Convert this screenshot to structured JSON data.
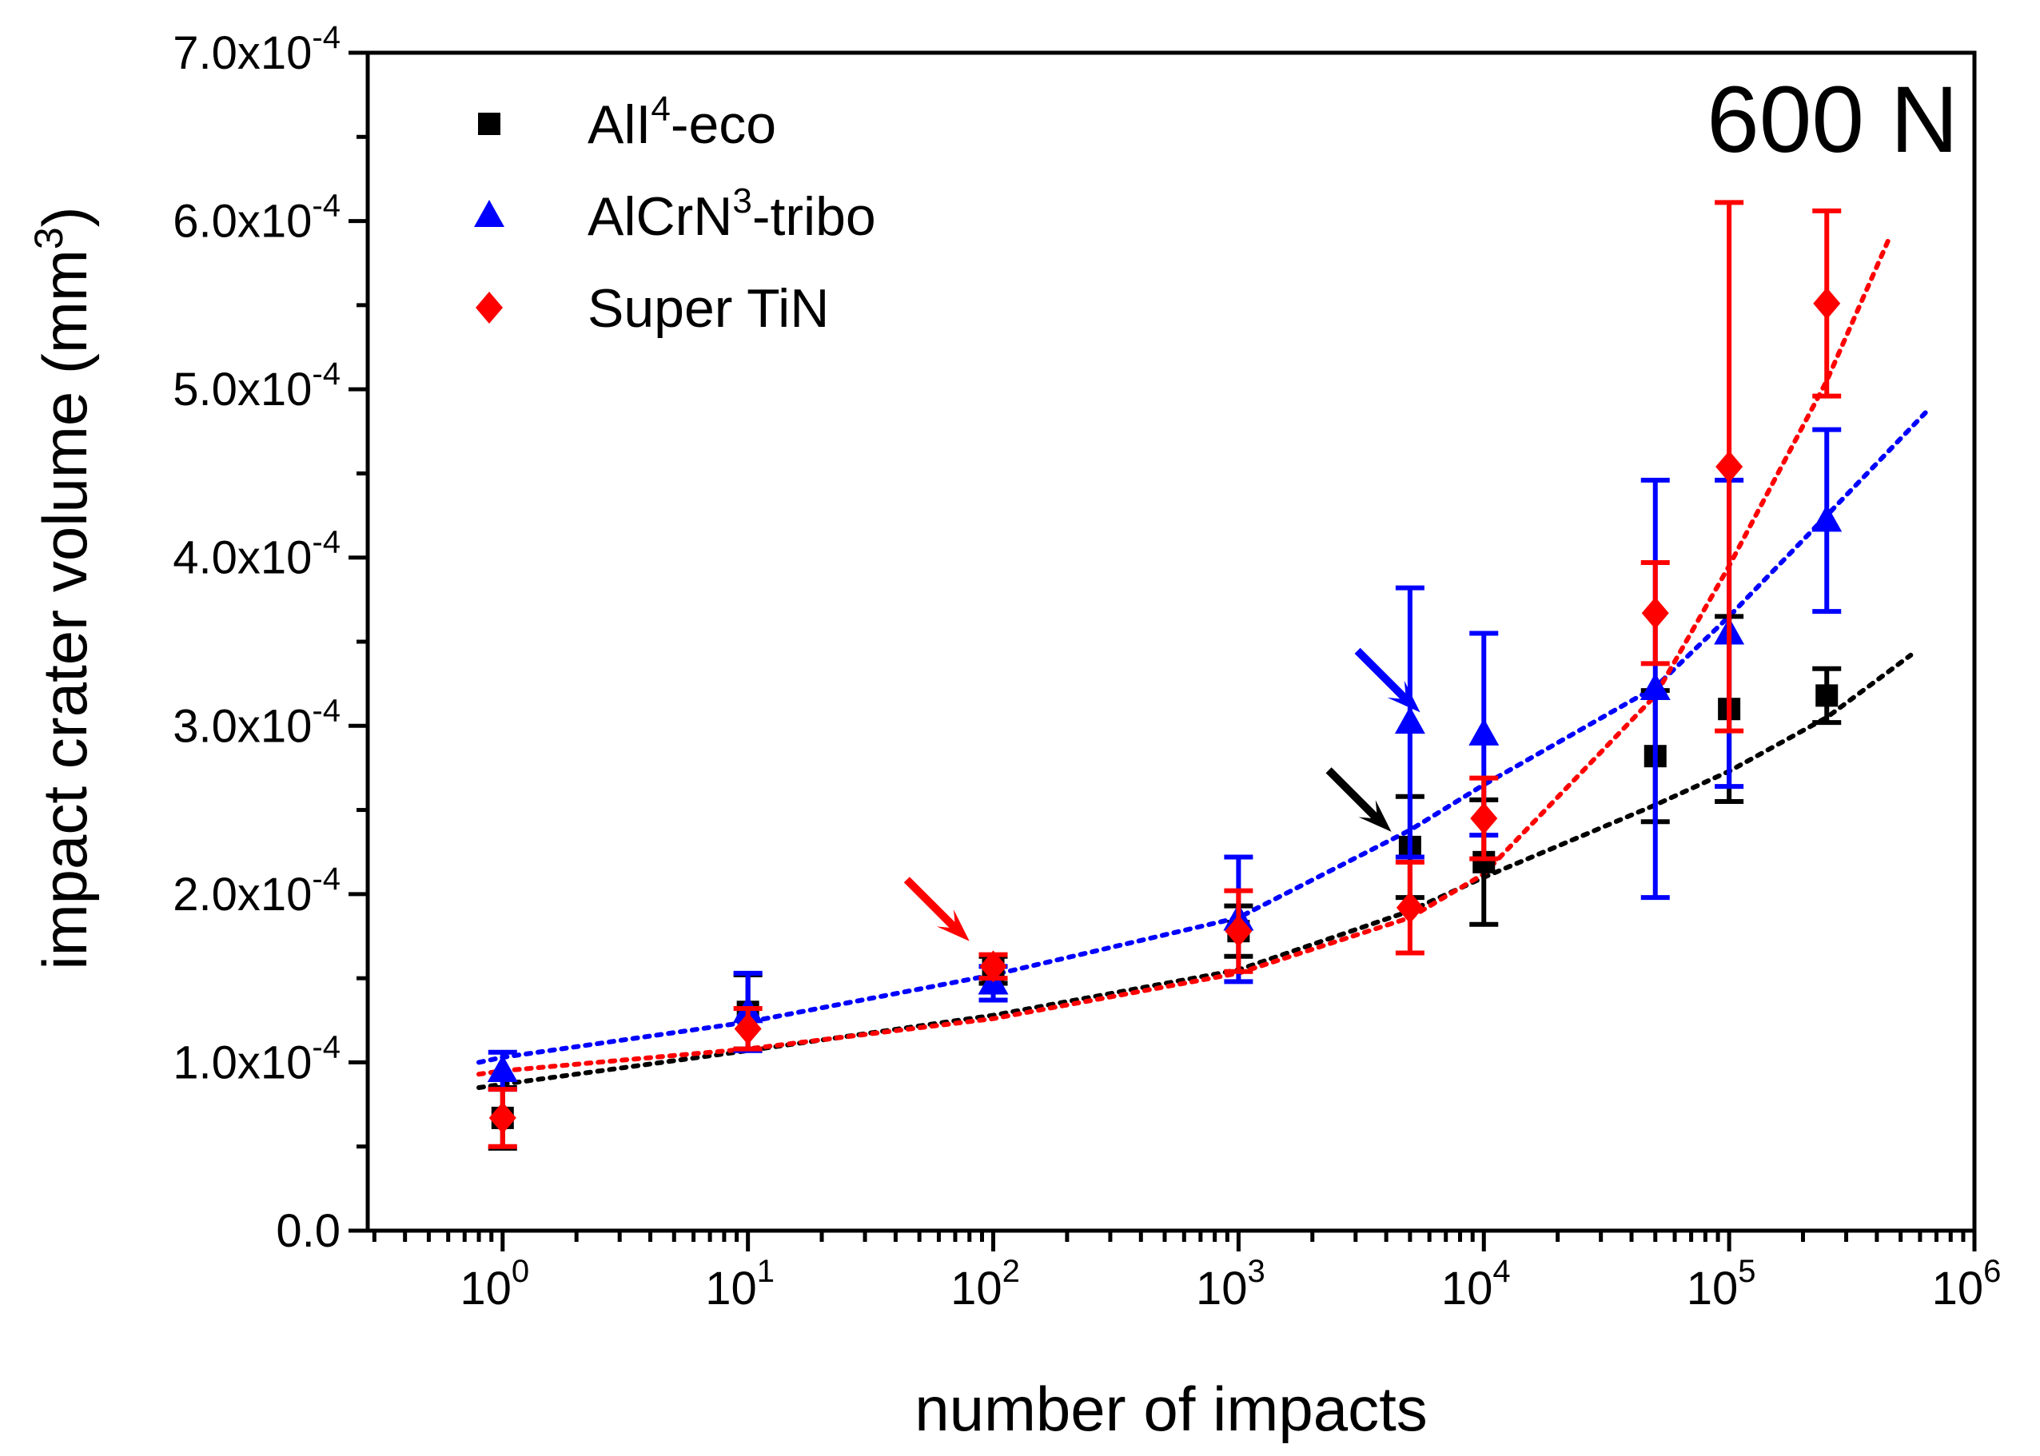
{
  "chart_data": {
    "type": "scatter",
    "x_scale": "log",
    "title": "",
    "annotation": "600 N",
    "xlabel": "number of impacts",
    "ylabel": "impact crater volume (mm",
    "ylabel_sup": "3",
    "ylabel_tail": ")",
    "xlim_log10": [
      -0.55,
      6.0
    ],
    "ylim": [
      0,
      0.0007
    ],
    "x_ticks": [
      {
        "exp": 0,
        "base": "10",
        "sup": "0"
      },
      {
        "exp": 1,
        "base": "10",
        "sup": "1"
      },
      {
        "exp": 2,
        "base": "10",
        "sup": "2"
      },
      {
        "exp": 3,
        "base": "10",
        "sup": "3"
      },
      {
        "exp": 4,
        "base": "10",
        "sup": "4"
      },
      {
        "exp": 5,
        "base": "10",
        "sup": "5"
      },
      {
        "exp": 6,
        "base": "10",
        "sup": "6"
      }
    ],
    "y_ticks": [
      {
        "value": 0,
        "label": "0.0",
        "sup": ""
      },
      {
        "value": 0.0001,
        "label": "1.0x10",
        "sup": "-4"
      },
      {
        "value": 0.0002,
        "label": "2.0x10",
        "sup": "-4"
      },
      {
        "value": 0.0003,
        "label": "3.0x10",
        "sup": "-4"
      },
      {
        "value": 0.0004,
        "label": "4.0x10",
        "sup": "-4"
      },
      {
        "value": 0.0005,
        "label": "5.0x10",
        "sup": "-4"
      },
      {
        "value": 0.0006,
        "label": "6.0x10",
        "sup": "-4"
      },
      {
        "value": 0.0007,
        "label": "7.0x10",
        "sup": "-4"
      }
    ],
    "legend_position": "top-left",
    "series": [
      {
        "name": "AlI4-eco",
        "legend": {
          "pre": "AlI",
          "sup": "4",
          "post": "-eco"
        },
        "color": "#000000",
        "marker": "square",
        "x": [
          1,
          10,
          100,
          1000,
          5000,
          10000,
          50000,
          100000,
          250000
        ],
        "y": [
          6.7e-05,
          0.00013,
          0.000155,
          0.000178,
          0.000228,
          0.000219,
          0.000282,
          0.00031,
          0.000318
        ],
        "err": [
          1.8e-05,
          2.2e-05,
          8e-06,
          1.5e-05,
          3e-05,
          3.7e-05,
          3.9e-05,
          5.5e-05,
          1.6e-05
        ],
        "fit": [
          [
            0.8,
            8.5e-05
          ],
          [
            1,
            8.7e-05
          ],
          [
            10,
            0.000107
          ],
          [
            100,
            0.000128
          ],
          [
            1000,
            0.000155
          ],
          [
            5000,
            0.00019
          ],
          [
            10000,
            0.00021
          ],
          [
            50000,
            0.000253
          ],
          [
            100000,
            0.000273
          ],
          [
            250000,
            0.000305
          ],
          [
            550000,
            0.000342
          ]
        ]
      },
      {
        "name": "AlCrN3-tribo",
        "legend": {
          "pre": "AlCrN",
          "sup": "3",
          "post": "-tribo"
        },
        "color": "#0000ff",
        "marker": "triangle",
        "x": [
          1,
          10,
          100,
          1000,
          5000,
          10000,
          50000,
          100000,
          250000
        ],
        "y": [
          9.5e-05,
          0.00013,
          0.000147,
          0.000185,
          0.000302,
          0.000295,
          0.000322,
          0.000355,
          0.000422
        ],
        "err": [
          1.1e-05,
          2.3e-05,
          1e-05,
          3.7e-05,
          8e-05,
          6e-05,
          0.000124,
          9.1e-05,
          5.4e-05
        ],
        "fit": [
          [
            0.8,
            0.0001
          ],
          [
            1,
            0.000103
          ],
          [
            10,
            0.000124
          ],
          [
            100,
            0.000152
          ],
          [
            1000,
            0.000186
          ],
          [
            5000,
            0.000238
          ],
          [
            10000,
            0.000265
          ],
          [
            50000,
            0.000323
          ],
          [
            100000,
            0.000365
          ],
          [
            250000,
            0.000425
          ],
          [
            650000,
            0.000488
          ]
        ]
      },
      {
        "name": "Super TiN",
        "legend": {
          "pre": "Super TiN",
          "sup": "",
          "post": ""
        },
        "color": "#ff0000",
        "marker": "diamond",
        "x": [
          1,
          10,
          100,
          1000,
          5000,
          10000,
          50000,
          100000,
          250000
        ],
        "y": [
          6.7e-05,
          0.00012,
          0.000157,
          0.000178,
          0.000192,
          0.000245,
          0.000367,
          0.000454,
          0.000551
        ],
        "err": [
          1.7e-05,
          1.2e-05,
          7e-06,
          2.4e-05,
          2.7e-05,
          2.4e-05,
          3e-05,
          0.000157,
          5.5e-05
        ],
        "fit": [
          [
            0.8,
            9.3e-05
          ],
          [
            1,
            9.5e-05
          ],
          [
            10,
            0.000108
          ],
          [
            100,
            0.000126
          ],
          [
            1000,
            0.000153
          ],
          [
            5000,
            0.000186
          ],
          [
            10000,
            0.000212
          ],
          [
            50000,
            0.000318
          ],
          [
            100000,
            0.000395
          ],
          [
            250000,
            0.000505
          ],
          [
            450000,
            0.00059
          ]
        ]
      }
    ],
    "arrows": [
      {
        "color": "#ff0000",
        "label": "Super TiN arrow",
        "target_x": 80,
        "target_y": 0.000172
      },
      {
        "color": "#0000ff",
        "label": "AlCrN3-tribo arrow",
        "target_x": 5500,
        "target_y": 0.000308
      },
      {
        "color": "#000000",
        "label": "AlI4-eco arrow",
        "target_x": 4200,
        "target_y": 0.000237
      }
    ]
  }
}
